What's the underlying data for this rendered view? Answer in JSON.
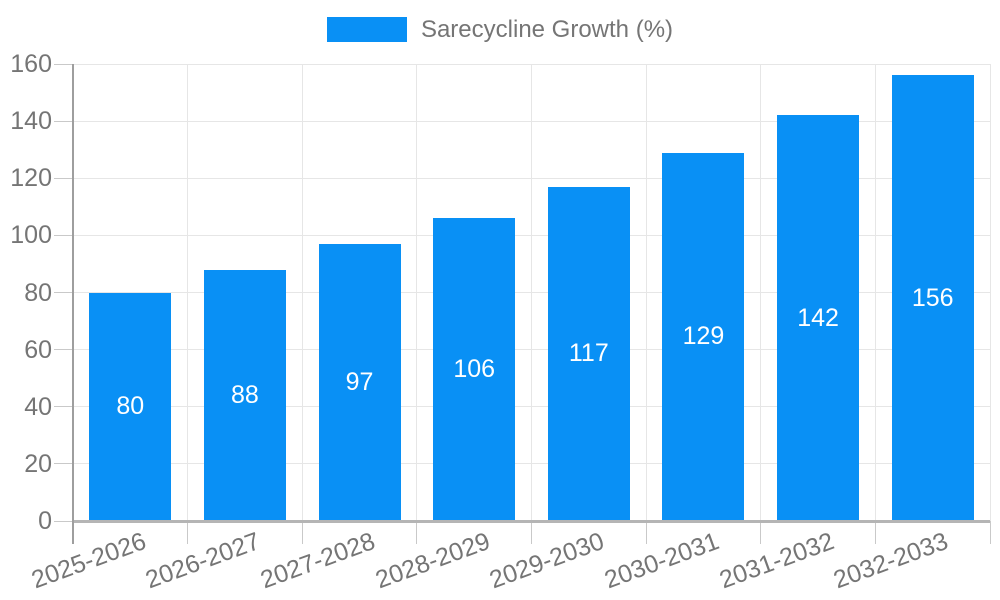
{
  "chart_data": {
    "type": "bar",
    "title": "Sarecycline Growth (%)",
    "categories": [
      "2025-2026",
      "2026-2027",
      "2027-2028",
      "2028-2029",
      "2029-2030",
      "2030-2031",
      "2031-2032",
      "2032-2033"
    ],
    "values": [
      80,
      88,
      97,
      106,
      117,
      129,
      142,
      156
    ],
    "xlabel": "",
    "ylabel": "",
    "ylim": [
      0,
      160
    ],
    "yticks": [
      0,
      20,
      40,
      60,
      80,
      100,
      120,
      140,
      160
    ],
    "grid": true,
    "legend_position": "top",
    "bar_value_labels": true,
    "colors": {
      "bar": "#0990F5",
      "bar_label": "#FFFFFF",
      "axis_text": "#757575",
      "legend_text": "#757575",
      "gridline": "#E6E6E6",
      "tick": "#C9C9C9",
      "axis_line": "#9E9E9E",
      "baseline": "#B5B5B5",
      "background": "#FFFFFF"
    }
  }
}
